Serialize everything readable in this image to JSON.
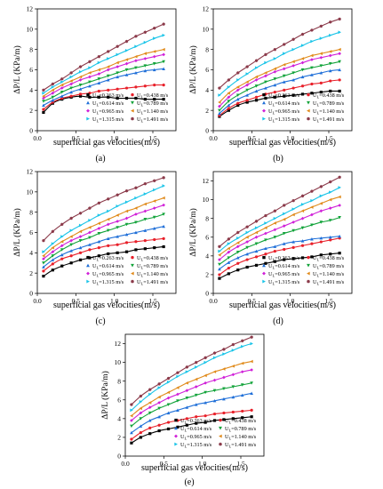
{
  "figure": {
    "colors": [
      "#000000",
      "#e8202a",
      "#1f6fd8",
      "#12a33a",
      "#d020d8",
      "#e08a1a",
      "#19c4e8",
      "#8b3a4a"
    ],
    "markers": [
      "square",
      "circle",
      "triangle-up",
      "triangle-down",
      "diamond",
      "triangle-left",
      "triangle-right",
      "hexagon"
    ]
  },
  "chart_data": [
    {
      "type": "scatter",
      "panel_label": "(a)",
      "xlabel": "superficial gas velocities(m/s)",
      "ylabel": "ΔP/L (KPa/m)",
      "xlim": [
        0,
        1.8
      ],
      "ylim": [
        0,
        12
      ],
      "xticks": [
        "0.0",
        "0.5",
        "1.0",
        "1.5"
      ],
      "yticks": [
        "0",
        "2",
        "4",
        "6",
        "8",
        "10",
        "12"
      ],
      "legend_position": "bottom-center",
      "x": [
        0.08,
        0.2,
        0.32,
        0.44,
        0.56,
        0.68,
        0.8,
        0.92,
        1.04,
        1.16,
        1.28,
        1.4,
        1.52,
        1.64
      ],
      "series": [
        {
          "name": "U",
          "subscript": "L",
          "value_text": "=0.263 m/s",
          "values": [
            1.8,
            2.7,
            3.1,
            3.3,
            3.4,
            3.3,
            3.3,
            3.3,
            3.2,
            3.2,
            3.2,
            3.1,
            3.1,
            3.1
          ]
        },
        {
          "name": "U",
          "subscript": "L",
          "value_text": "=0.438 m/s",
          "values": [
            2.1,
            2.8,
            3.2,
            3.4,
            3.6,
            3.7,
            3.9,
            4.0,
            4.1,
            4.2,
            4.3,
            4.4,
            4.5,
            4.5
          ]
        },
        {
          "name": "U",
          "subscript": "L",
          "value_text": "=0.614 m/s",
          "values": [
            2.5,
            3.0,
            3.4,
            3.8,
            4.1,
            4.4,
            4.7,
            5.0,
            5.3,
            5.5,
            5.7,
            5.9,
            6.0,
            6.1
          ]
        },
        {
          "name": "U",
          "subscript": "L",
          "value_text": "=0.789 m/s",
          "values": [
            2.9,
            3.3,
            3.8,
            4.2,
            4.5,
            4.8,
            5.1,
            5.4,
            5.7,
            6.0,
            6.2,
            6.4,
            6.6,
            6.8
          ]
        },
        {
          "name": "U",
          "subscript": "L",
          "value_text": "=0.965 m/s",
          "values": [
            3.2,
            3.7,
            4.2,
            4.6,
            5.0,
            5.3,
            5.6,
            6.0,
            6.3,
            6.6,
            6.9,
            7.1,
            7.3,
            7.5
          ]
        },
        {
          "name": "U",
          "subscript": "L",
          "value_text": "=1.140 m/s",
          "values": [
            3.4,
            4.0,
            4.5,
            4.9,
            5.3,
            5.7,
            6.0,
            6.3,
            6.7,
            7.0,
            7.3,
            7.6,
            7.8,
            8.0
          ]
        },
        {
          "name": "U",
          "subscript": "L",
          "value_text": "=1.315 m/s",
          "values": [
            3.7,
            4.3,
            4.8,
            5.3,
            5.8,
            6.2,
            6.7,
            7.1,
            7.5,
            7.9,
            8.3,
            8.7,
            9.1,
            9.4
          ]
        },
        {
          "name": "U",
          "subscript": "L",
          "value_text": "=1.491 m/s",
          "values": [
            4.0,
            4.6,
            5.1,
            5.7,
            6.3,
            6.8,
            7.3,
            7.8,
            8.3,
            8.8,
            9.3,
            9.7,
            10.1,
            10.5
          ]
        }
      ]
    },
    {
      "type": "scatter",
      "panel_label": "(b)",
      "xlabel": "superficial gas velocities(m/s)",
      "ylabel": "ΔP/L (KPa/m)",
      "xlim": [
        0,
        1.8
      ],
      "ylim": [
        0,
        12
      ],
      "xticks": [
        "0.0",
        "0.5",
        "1.0",
        "1.5"
      ],
      "yticks": [
        "0",
        "2",
        "4",
        "6",
        "8",
        "10",
        "12"
      ],
      "legend_position": "bottom-center",
      "x": [
        0.08,
        0.2,
        0.32,
        0.44,
        0.56,
        0.68,
        0.8,
        0.92,
        1.04,
        1.16,
        1.28,
        1.4,
        1.52,
        1.64
      ],
      "series": [
        {
          "name": "U",
          "subscript": "L",
          "value_text": "=0.263 m/s",
          "values": [
            1.4,
            2.0,
            2.5,
            2.8,
            3.0,
            3.2,
            3.3,
            3.4,
            3.5,
            3.6,
            3.7,
            3.8,
            3.9,
            3.9
          ]
        },
        {
          "name": "U",
          "subscript": "L",
          "value_text": "=0.438 m/s",
          "values": [
            1.5,
            2.2,
            2.7,
            3.0,
            3.3,
            3.6,
            3.8,
            4.0,
            4.2,
            4.4,
            4.6,
            4.7,
            4.9,
            5.0
          ]
        },
        {
          "name": "U",
          "subscript": "L",
          "value_text": "=0.614 m/s",
          "values": [
            1.7,
            2.5,
            3.1,
            3.5,
            3.9,
            4.2,
            4.5,
            4.8,
            5.0,
            5.3,
            5.5,
            5.7,
            5.9,
            6.0
          ]
        },
        {
          "name": "U",
          "subscript": "L",
          "value_text": "=0.789 m/s",
          "values": [
            2.0,
            2.9,
            3.5,
            4.0,
            4.4,
            4.8,
            5.1,
            5.4,
            5.7,
            6.0,
            6.2,
            6.4,
            6.6,
            6.8
          ]
        },
        {
          "name": "U",
          "subscript": "L",
          "value_text": "=0.965 m/s",
          "values": [
            2.4,
            3.3,
            4.0,
            4.5,
            5.0,
            5.4,
            5.8,
            6.1,
            6.4,
            6.7,
            7.0,
            7.2,
            7.4,
            7.6
          ]
        },
        {
          "name": "U",
          "subscript": "L",
          "value_text": "=1.140 m/s",
          "values": [
            2.8,
            3.7,
            4.3,
            4.8,
            5.3,
            5.7,
            6.1,
            6.5,
            6.8,
            7.1,
            7.4,
            7.6,
            7.8,
            8.0
          ]
        },
        {
          "name": "U",
          "subscript": "L",
          "value_text": "=1.315 m/s",
          "values": [
            3.5,
            4.3,
            5.0,
            5.6,
            6.2,
            6.7,
            7.1,
            7.6,
            8.0,
            8.4,
            8.8,
            9.1,
            9.4,
            9.7
          ]
        },
        {
          "name": "U",
          "subscript": "L",
          "value_text": "=1.491 m/s",
          "values": [
            4.2,
            5.0,
            5.7,
            6.3,
            6.9,
            7.5,
            8.0,
            8.5,
            9.0,
            9.5,
            9.9,
            10.3,
            10.7,
            11.0
          ]
        }
      ]
    },
    {
      "type": "scatter",
      "panel_label": "(c)",
      "xlabel": "superficial gas velocities(m/s)",
      "ylabel": "ΔP/L (KPa/m)",
      "xlim": [
        0,
        1.8
      ],
      "ylim": [
        0,
        12
      ],
      "xticks": [
        "0.0",
        "0.5",
        "1.0",
        "1.5"
      ],
      "yticks": [
        "0",
        "2",
        "4",
        "6",
        "8",
        "10",
        "12"
      ],
      "legend_position": "bottom-center",
      "x": [
        0.08,
        0.2,
        0.32,
        0.44,
        0.56,
        0.68,
        0.8,
        0.92,
        1.04,
        1.16,
        1.28,
        1.4,
        1.52,
        1.64
      ],
      "series": [
        {
          "name": "U",
          "subscript": "L",
          "value_text": "=0.263 m/s",
          "values": [
            1.7,
            2.3,
            2.7,
            3.0,
            3.3,
            3.5,
            3.7,
            3.9,
            4.0,
            4.1,
            4.3,
            4.4,
            4.5,
            4.6
          ]
        },
        {
          "name": "U",
          "subscript": "L",
          "value_text": "=0.438 m/s",
          "values": [
            2.2,
            2.9,
            3.4,
            3.7,
            4.0,
            4.3,
            4.5,
            4.7,
            4.8,
            5.0,
            5.1,
            5.2,
            5.3,
            5.4
          ]
        },
        {
          "name": "U",
          "subscript": "L",
          "value_text": "=0.614 m/s",
          "values": [
            2.6,
            3.3,
            3.8,
            4.2,
            4.5,
            4.8,
            5.1,
            5.4,
            5.6,
            5.8,
            6.0,
            6.2,
            6.4,
            6.6
          ]
        },
        {
          "name": "U",
          "subscript": "L",
          "value_text": "=0.789 m/s",
          "values": [
            3.0,
            3.7,
            4.3,
            4.8,
            5.2,
            5.5,
            5.9,
            6.2,
            6.5,
            6.8,
            7.0,
            7.3,
            7.5,
            7.8
          ]
        },
        {
          "name": "U",
          "subscript": "L",
          "value_text": "=0.965 m/s",
          "values": [
            3.4,
            4.1,
            4.7,
            5.2,
            5.6,
            6.0,
            6.4,
            6.8,
            7.1,
            7.4,
            7.8,
            8.1,
            8.4,
            8.7
          ]
        },
        {
          "name": "U",
          "subscript": "L",
          "value_text": "=1.140 m/s",
          "values": [
            3.7,
            4.5,
            5.1,
            5.6,
            6.1,
            6.5,
            6.9,
            7.3,
            7.7,
            8.1,
            8.4,
            8.8,
            9.1,
            9.4
          ]
        },
        {
          "name": "U",
          "subscript": "L",
          "value_text": "=1.315 m/s",
          "values": [
            4.1,
            4.9,
            5.6,
            6.2,
            6.7,
            7.2,
            7.7,
            8.1,
            8.6,
            9.0,
            9.4,
            9.8,
            10.2,
            10.6
          ]
        },
        {
          "name": "U",
          "subscript": "L",
          "value_text": "=1.491 m/s",
          "values": [
            5.2,
            6.1,
            6.8,
            7.4,
            7.9,
            8.4,
            8.9,
            9.3,
            9.7,
            10.1,
            10.4,
            10.8,
            11.1,
            11.4
          ]
        }
      ]
    },
    {
      "type": "scatter",
      "panel_label": "(d)",
      "xlabel": "superficial gas velocities(m/s)",
      "ylabel": "ΔP/L (KPa/m)",
      "xlim": [
        0,
        1.8
      ],
      "ylim": [
        0,
        13
      ],
      "xticks": [
        "0.0",
        "0.5",
        "1.0",
        "1.5"
      ],
      "yticks": [
        "0",
        "2",
        "4",
        "6",
        "8",
        "10",
        "12"
      ],
      "legend_position": "bottom-center",
      "x": [
        0.08,
        0.2,
        0.32,
        0.44,
        0.56,
        0.68,
        0.8,
        0.92,
        1.04,
        1.16,
        1.28,
        1.4,
        1.52,
        1.64
      ],
      "series": [
        {
          "name": "U",
          "subscript": "L",
          "value_text": "=0.263 m/s",
          "values": [
            1.6,
            2.1,
            2.5,
            2.8,
            3.0,
            3.2,
            3.4,
            3.6,
            3.7,
            3.8,
            3.9,
            4.1,
            4.2,
            4.3
          ]
        },
        {
          "name": "U",
          "subscript": "L",
          "value_text": "=0.438 m/s",
          "values": [
            2.0,
            2.7,
            3.2,
            3.6,
            3.9,
            4.2,
            4.5,
            4.7,
            4.9,
            5.1,
            5.3,
            5.5,
            5.7,
            5.9
          ]
        },
        {
          "name": "U",
          "subscript": "L",
          "value_text": "=0.614 m/s",
          "values": [
            2.6,
            3.3,
            3.8,
            4.2,
            4.5,
            4.8,
            5.0,
            5.3,
            5.5,
            5.6,
            5.8,
            5.9,
            6.0,
            6.1
          ]
        },
        {
          "name": "U",
          "subscript": "L",
          "value_text": "=0.789 m/s",
          "values": [
            3.1,
            3.8,
            4.4,
            4.9,
            5.3,
            5.7,
            6.0,
            6.4,
            6.7,
            7.0,
            7.3,
            7.6,
            7.8,
            8.1
          ]
        },
        {
          "name": "U",
          "subscript": "L",
          "value_text": "=0.965 m/s",
          "values": [
            3.6,
            4.4,
            5.0,
            5.5,
            6.0,
            6.4,
            6.8,
            7.2,
            7.6,
            8.0,
            8.4,
            8.8,
            9.1,
            9.4
          ]
        },
        {
          "name": "U",
          "subscript": "L",
          "value_text": "=1.140 m/s",
          "values": [
            4.1,
            4.8,
            5.4,
            6.0,
            6.5,
            7.0,
            7.5,
            7.9,
            8.4,
            8.8,
            9.2,
            9.6,
            10.0,
            10.3
          ]
        },
        {
          "name": "U",
          "subscript": "L",
          "value_text": "=1.315 m/s",
          "values": [
            4.5,
            5.3,
            5.9,
            6.5,
            7.0,
            7.5,
            8.0,
            8.5,
            9.0,
            9.5,
            9.9,
            10.4,
            10.8,
            11.3
          ]
        },
        {
          "name": "U",
          "subscript": "L",
          "value_text": "=1.491 m/s",
          "values": [
            5.0,
            5.8,
            6.5,
            7.1,
            7.7,
            8.3,
            8.8,
            9.4,
            9.9,
            10.4,
            10.9,
            11.4,
            11.9,
            12.4
          ]
        }
      ]
    },
    {
      "type": "scatter",
      "panel_label": "(e)",
      "xlabel": "superficial gas velocities(m/s)",
      "ylabel": "ΔP/L (KPa/m)",
      "xlim": [
        0,
        1.8
      ],
      "ylim": [
        0,
        13
      ],
      "xticks": [
        "0.0",
        "0.5",
        "1.0",
        "1.5"
      ],
      "yticks": [
        "0",
        "2",
        "4",
        "6",
        "8",
        "10",
        "12"
      ],
      "legend_position": "bottom-center",
      "x": [
        0.08,
        0.2,
        0.32,
        0.44,
        0.56,
        0.68,
        0.8,
        0.92,
        1.04,
        1.16,
        1.28,
        1.4,
        1.52,
        1.64
      ],
      "series": [
        {
          "name": "U",
          "subscript": "L",
          "value_text": "=0.263 m/s",
          "values": [
            1.4,
            2.0,
            2.4,
            2.7,
            2.9,
            3.1,
            3.3,
            3.5,
            3.6,
            3.8,
            3.9,
            4.0,
            4.1,
            4.2
          ]
        },
        {
          "name": "U",
          "subscript": "L",
          "value_text": "=0.438 m/s",
          "values": [
            1.8,
            2.5,
            3.0,
            3.3,
            3.6,
            3.8,
            4.0,
            4.2,
            4.3,
            4.5,
            4.6,
            4.7,
            4.8,
            4.9
          ]
        },
        {
          "name": "U",
          "subscript": "L",
          "value_text": "=0.614 m/s",
          "values": [
            2.5,
            3.2,
            3.8,
            4.2,
            4.6,
            4.9,
            5.2,
            5.5,
            5.7,
            5.9,
            6.1,
            6.3,
            6.5,
            6.7
          ]
        },
        {
          "name": "U",
          "subscript": "L",
          "value_text": "=0.789 m/s",
          "values": [
            3.2,
            4.0,
            4.6,
            5.1,
            5.5,
            5.9,
            6.2,
            6.5,
            6.8,
            7.0,
            7.2,
            7.4,
            7.6,
            7.8
          ]
        },
        {
          "name": "U",
          "subscript": "L",
          "value_text": "=0.965 m/s",
          "values": [
            3.8,
            4.6,
            5.2,
            5.7,
            6.2,
            6.6,
            7.0,
            7.4,
            7.8,
            8.1,
            8.4,
            8.7,
            9.0,
            9.2
          ]
        },
        {
          "name": "U",
          "subscript": "L",
          "value_text": "=1.140 m/s",
          "values": [
            4.3,
            5.1,
            5.7,
            6.3,
            6.8,
            7.3,
            7.8,
            8.2,
            8.6,
            9.0,
            9.3,
            9.6,
            9.9,
            10.1
          ]
        },
        {
          "name": "U",
          "subscript": "L",
          "value_text": "=1.315 m/s",
          "values": [
            4.9,
            5.8,
            6.6,
            7.3,
            7.9,
            8.5,
            9.0,
            9.5,
            10.0,
            10.5,
            10.9,
            11.3,
            11.7,
            12.0
          ]
        },
        {
          "name": "U",
          "subscript": "L",
          "value_text": "=1.491 m/s",
          "values": [
            5.5,
            6.4,
            7.1,
            7.7,
            8.3,
            8.9,
            9.5,
            10.0,
            10.5,
            11.0,
            11.4,
            11.9,
            12.3,
            12.7
          ]
        }
      ]
    }
  ]
}
